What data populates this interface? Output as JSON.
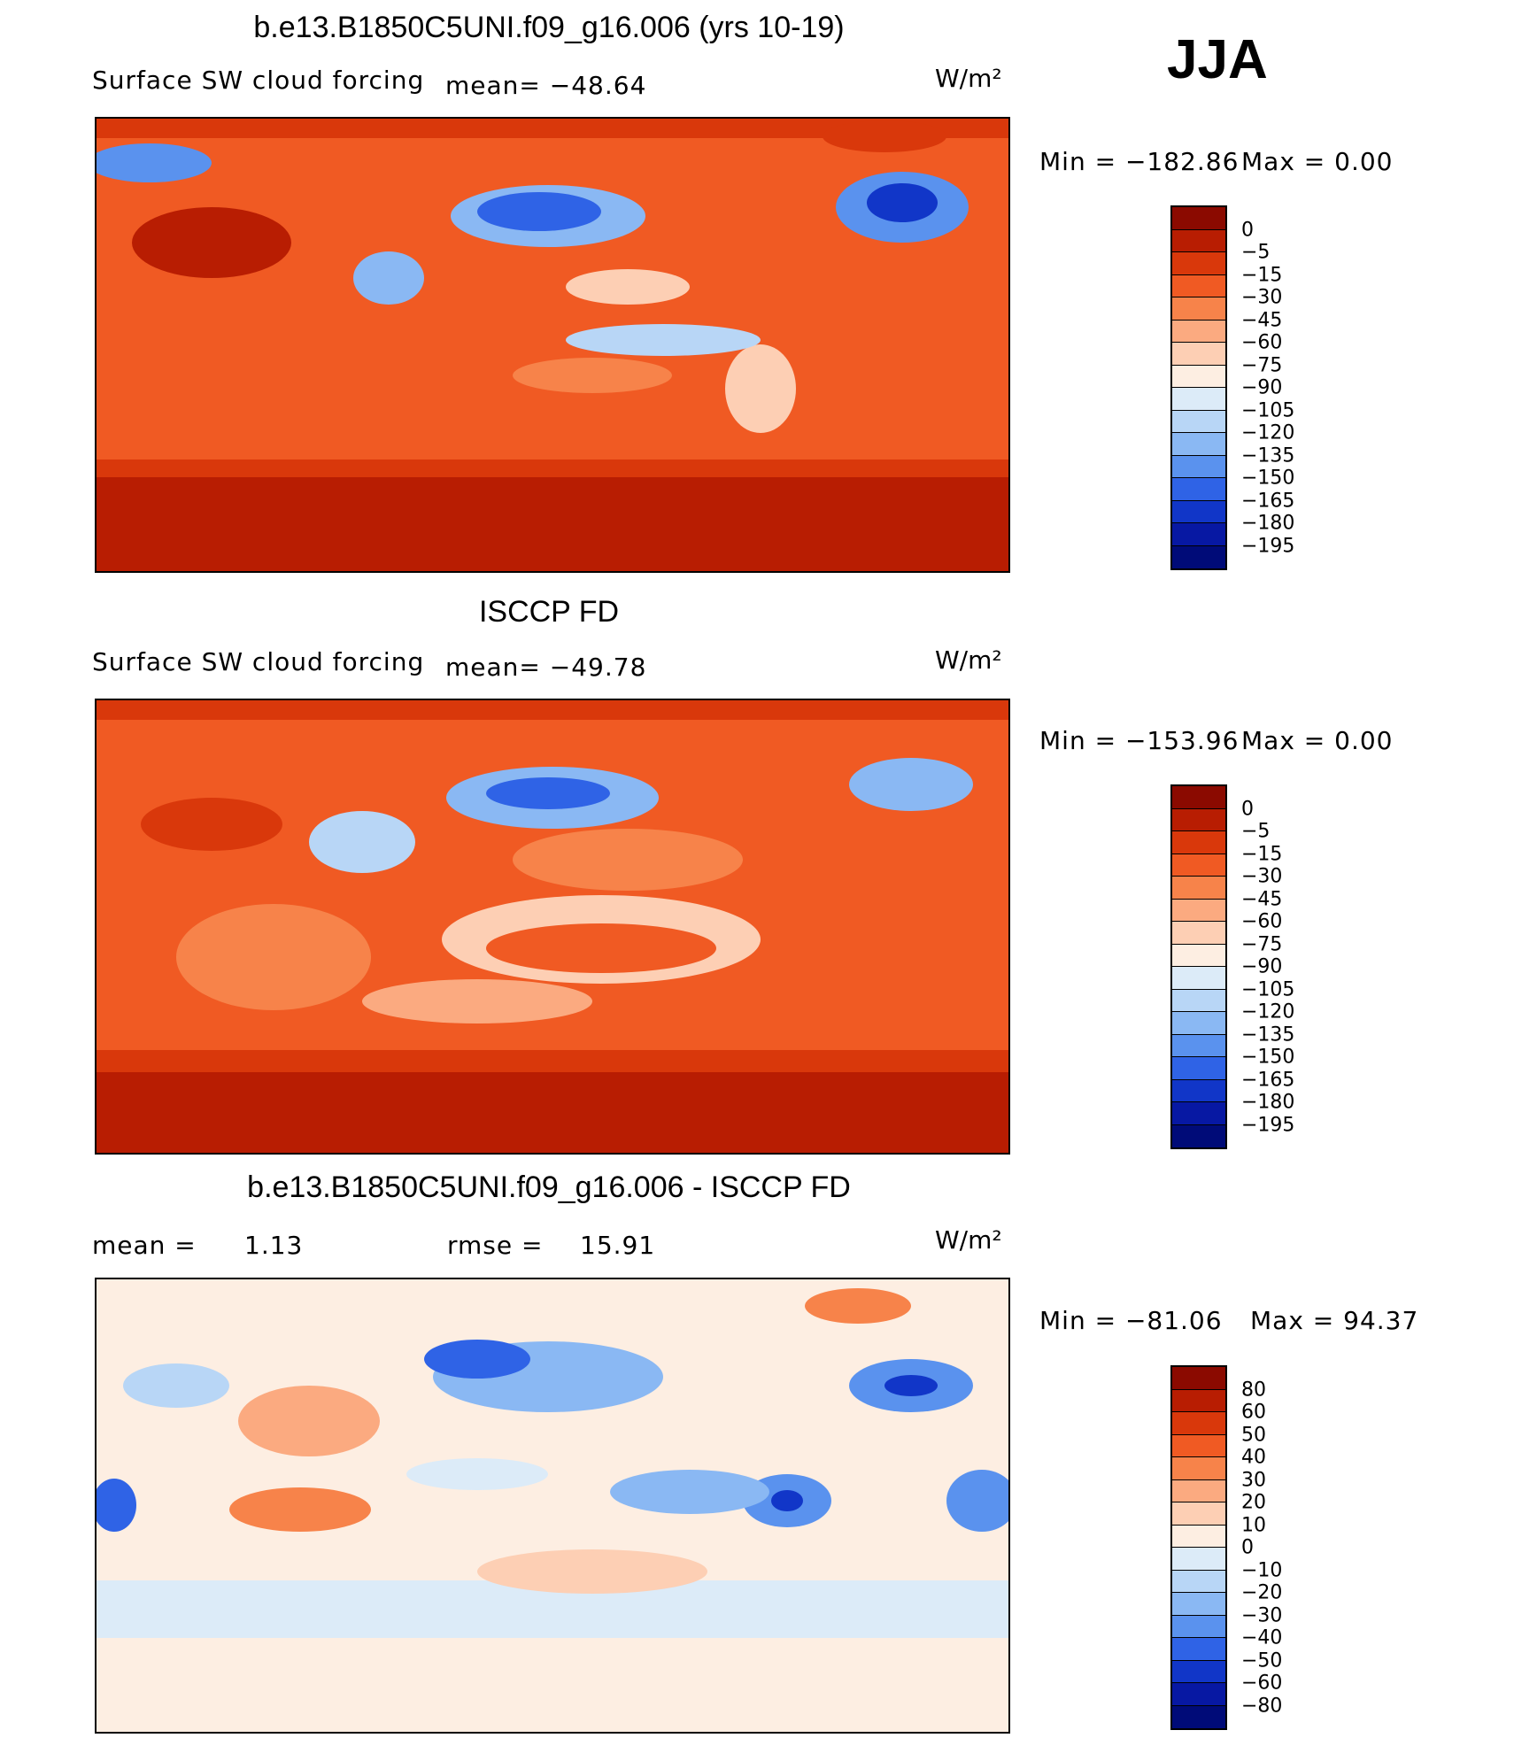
{
  "season": "JJA",
  "colorbars": {
    "abs": {
      "labels": [
        "0",
        "−5",
        "−15",
        "−30",
        "−45",
        "−60",
        "−75",
        "−90",
        "−105",
        "−120",
        "−135",
        "−150",
        "−165",
        "−180",
        "−195"
      ],
      "colors": [
        "#8b0a00",
        "#b81d02",
        "#d9380b",
        "#f05a23",
        "#f7834a",
        "#fbaa80",
        "#fdcfb4",
        "#fdeee2",
        "#dcebf8",
        "#b8d6f6",
        "#8ab8f3",
        "#5a92ee",
        "#2f63e6",
        "#1136c8",
        "#0718a3",
        "#000b78"
      ]
    },
    "diff": {
      "labels": [
        "80",
        "60",
        "50",
        "40",
        "30",
        "20",
        "10",
        "0",
        "−10",
        "−20",
        "−30",
        "−40",
        "−50",
        "−60",
        "−80"
      ],
      "colors": [
        "#8b0a00",
        "#b81d02",
        "#d9380b",
        "#f05a23",
        "#f7834a",
        "#fbaa80",
        "#fdcfb4",
        "#fdeee2",
        "#dcebf8",
        "#b8d6f6",
        "#8ab8f3",
        "#5a92ee",
        "#2f63e6",
        "#1136c8",
        "#0718a3",
        "#000b78"
      ]
    }
  },
  "chart_data": [
    {
      "type": "heatmap",
      "title": "b.e13.B1850C5UNI.f09_g16.006 (yrs 10-19)",
      "subtitle": "Surface SW cloud forcing",
      "mean_text": "mean= −48.64",
      "units_text": "W/m²",
      "min_text": "Min = −182.86",
      "max_text": "Max =    0.00",
      "min": -182.86,
      "max": 0.0,
      "mean": -48.64,
      "colorbar": "abs"
    },
    {
      "type": "heatmap",
      "title": "ISCCP FD",
      "subtitle": "Surface SW cloud forcing",
      "mean_text": "mean= −49.78",
      "units_text": "W/m²",
      "min_text": "Min = −153.96",
      "max_text": "Max =    0.00",
      "min": -153.96,
      "max": 0.0,
      "mean": -49.78,
      "colorbar": "abs"
    },
    {
      "type": "heatmap",
      "title": "b.e13.B1850C5UNI.f09_g16.006 - ISCCP FD",
      "mean_label": "mean =",
      "mean_value": "1.13",
      "rmse_label": "rmse =",
      "rmse_value": "15.91",
      "units_text": "W/m²",
      "min_text": "Min = −81.06",
      "max_text": "Max =  94.37",
      "min": -81.06,
      "max": 94.37,
      "mean": 1.13,
      "rmse": 15.91,
      "colorbar": "diff"
    }
  ]
}
